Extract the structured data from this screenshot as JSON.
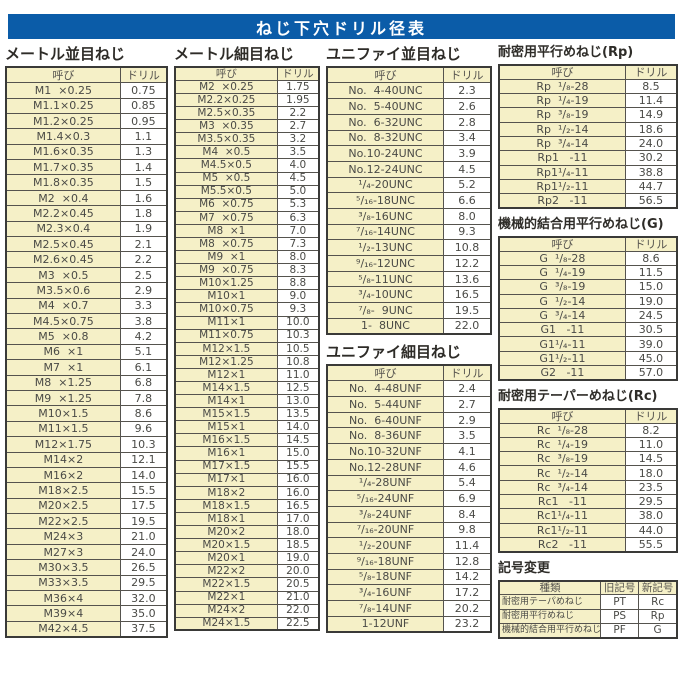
{
  "title": "ねじ下穴ドリル径表",
  "labels": {
    "name": "呼び",
    "drill": "ドリル"
  },
  "colors": {
    "accent_blue": "#0b5ca8",
    "cell_cream": "#f5f0c7",
    "border": "#3a3a38"
  },
  "tables": {
    "metric_coarse": {
      "title": "メートル並目ねじ",
      "rows": [
        [
          "M1  ×0.25",
          "0.75"
        ],
        [
          "M1.1×0.25",
          "0.85"
        ],
        [
          "M1.2×0.25",
          "0.95"
        ],
        [
          "M1.4×0.3",
          "1.1"
        ],
        [
          "M1.6×0.35",
          "1.3"
        ],
        [
          "M1.7×0.35",
          "1.4"
        ],
        [
          "M1.8×0.35",
          "1.5"
        ],
        [
          "M2  ×0.4",
          "1.6"
        ],
        [
          "M2.2×0.45",
          "1.8"
        ],
        [
          "M2.3×0.4",
          "1.9"
        ],
        [
          "M2.5×0.45",
          "2.1"
        ],
        [
          "M2.6×0.45",
          "2.2"
        ],
        [
          "M3  ×0.5",
          "2.5"
        ],
        [
          "M3.5×0.6",
          "2.9"
        ],
        [
          "M4  ×0.7",
          "3.3"
        ],
        [
          "M4.5×0.75",
          "3.8"
        ],
        [
          "M5  ×0.8",
          "4.2"
        ],
        [
          "M6  ×1",
          "5.1"
        ],
        [
          "M7  ×1",
          "6.1"
        ],
        [
          "M8  ×1.25",
          "6.8"
        ],
        [
          "M9  ×1.25",
          "7.8"
        ],
        [
          "M10×1.5",
          "8.6"
        ],
        [
          "M11×1.5",
          "9.6"
        ],
        [
          "M12×1.75",
          "10.3"
        ],
        [
          "M14×2",
          "12.1"
        ],
        [
          "M16×2",
          "14.0"
        ],
        [
          "M18×2.5",
          "15.5"
        ],
        [
          "M20×2.5",
          "17.5"
        ],
        [
          "M22×2.5",
          "19.5"
        ],
        [
          "M24×3",
          "21.0"
        ],
        [
          "M27×3",
          "24.0"
        ],
        [
          "M30×3.5",
          "26.5"
        ],
        [
          "M33×3.5",
          "29.5"
        ],
        [
          "M36×4",
          "32.0"
        ],
        [
          "M39×4",
          "35.0"
        ],
        [
          "M42×4.5",
          "37.5"
        ]
      ]
    },
    "metric_fine": {
      "title": "メートル細目ねじ",
      "rows": [
        [
          "M2  ×0.25",
          "1.75"
        ],
        [
          "M2.2×0.25",
          "1.95"
        ],
        [
          "M2.5×0.35",
          "2.2"
        ],
        [
          "M3  ×0.35",
          "2.7"
        ],
        [
          "M3.5×0.35",
          "3.2"
        ],
        [
          "M4  ×0.5",
          "3.5"
        ],
        [
          "M4.5×0.5",
          "4.0"
        ],
        [
          "M5  ×0.5",
          "4.5"
        ],
        [
          "M5.5×0.5",
          "5.0"
        ],
        [
          "M6  ×0.75",
          "5.3"
        ],
        [
          "M7  ×0.75",
          "6.3"
        ],
        [
          "M8  ×1",
          "7.0"
        ],
        [
          "M8  ×0.75",
          "7.3"
        ],
        [
          "M9  ×1",
          "8.0"
        ],
        [
          "M9  ×0.75",
          "8.3"
        ],
        [
          "M10×1.25",
          "8.8"
        ],
        [
          "M10×1",
          "9.0"
        ],
        [
          "M10×0.75",
          "9.3"
        ],
        [
          "M11×1",
          "10.0"
        ],
        [
          "M11×0.75",
          "10.3"
        ],
        [
          "M12×1.5",
          "10.5"
        ],
        [
          "M12×1.25",
          "10.8"
        ],
        [
          "M12×1",
          "11.0"
        ],
        [
          "M14×1.5",
          "12.5"
        ],
        [
          "M14×1",
          "13.0"
        ],
        [
          "M15×1.5",
          "13.5"
        ],
        [
          "M15×1",
          "14.0"
        ],
        [
          "M16×1.5",
          "14.5"
        ],
        [
          "M16×1",
          "15.0"
        ],
        [
          "M17×1.5",
          "15.5"
        ],
        [
          "M17×1",
          "16.0"
        ],
        [
          "M18×2",
          "16.0"
        ],
        [
          "M18×1.5",
          "16.5"
        ],
        [
          "M18×1",
          "17.0"
        ],
        [
          "M20×2",
          "18.0"
        ],
        [
          "M20×1.5",
          "18.5"
        ],
        [
          "M20×1",
          "19.0"
        ],
        [
          "M22×2",
          "20.0"
        ],
        [
          "M22×1.5",
          "20.5"
        ],
        [
          "M22×1",
          "21.0"
        ],
        [
          "M24×2",
          "22.0"
        ],
        [
          "M24×1.5",
          "22.5"
        ]
      ]
    },
    "unified_coarse": {
      "title": "ユニファイ並目ねじ",
      "rows": [
        [
          "No.  4-40UNC",
          "2.3"
        ],
        [
          "No.  5-40UNC",
          "2.6"
        ],
        [
          "No.  6-32UNC",
          "2.8"
        ],
        [
          "No.  8-32UNC",
          "3.4"
        ],
        [
          "No.10-24UNC",
          "3.9"
        ],
        [
          "No.12-24UNC",
          "4.5"
        ],
        [
          "¹/₄-20UNC",
          "5.2"
        ],
        [
          "⁵/₁₆-18UNC",
          "6.6"
        ],
        [
          "³/₈-16UNC",
          "8.0"
        ],
        [
          "⁷/₁₆-14UNC",
          "9.3"
        ],
        [
          "¹/₂-13UNC",
          "10.8"
        ],
        [
          "⁹/₁₆-12UNC",
          "12.2"
        ],
        [
          "⁵/₈-11UNC",
          "13.6"
        ],
        [
          "³/₄-10UNC",
          "16.5"
        ],
        [
          "⁷/₈-  9UNC",
          "19.5"
        ],
        [
          "1-  8UNC",
          "22.0"
        ]
      ]
    },
    "unified_fine": {
      "title": "ユニファイ細目ねじ",
      "rows": [
        [
          "No.  4-48UNF",
          "2.4"
        ],
        [
          "No.  5-44UNF",
          "2.7"
        ],
        [
          "No.  6-40UNF",
          "2.9"
        ],
        [
          "No.  8-36UNF",
          "3.5"
        ],
        [
          "No.10-32UNF",
          "4.1"
        ],
        [
          "No.12-28UNF",
          "4.6"
        ],
        [
          "¹/₄-28UNF",
          "5.4"
        ],
        [
          "⁵/₁₆-24UNF",
          "6.9"
        ],
        [
          "³/₈-24UNF",
          "8.4"
        ],
        [
          "⁷/₁₆-20UNF",
          "9.8"
        ],
        [
          "¹/₂-20UNF",
          "11.4"
        ],
        [
          "⁹/₁₆-18UNF",
          "12.8"
        ],
        [
          "⁵/₈-18UNF",
          "14.2"
        ],
        [
          "³/₄-16UNF",
          "17.2"
        ],
        [
          "⁷/₈-14UNF",
          "20.2"
        ],
        [
          "1-12UNF",
          "23.2"
        ]
      ]
    },
    "rp": {
      "title": "耐密用平行めねじ(Rp)",
      "rows": [
        [
          "Rp  ¹/₈-28",
          "8.5"
        ],
        [
          "Rp  ¹/₄-19",
          "11.4"
        ],
        [
          "Rp  ³/₈-19",
          "14.9"
        ],
        [
          "Rp  ¹/₂-14",
          "18.6"
        ],
        [
          "Rp  ³/₄-14",
          "24.0"
        ],
        [
          "Rp1   -11",
          "30.2"
        ],
        [
          "Rp1¹/₄-11",
          "38.8"
        ],
        [
          "Rp1¹/₂-11",
          "44.7"
        ],
        [
          "Rp2   -11",
          "56.5"
        ]
      ]
    },
    "g": {
      "title": "機械的結合用平行めねじ(G)",
      "rows": [
        [
          "G  ¹/₈-28",
          "8.6"
        ],
        [
          "G  ¹/₄-19",
          "11.5"
        ],
        [
          "G  ³/₈-19",
          "15.0"
        ],
        [
          "G  ¹/₂-14",
          "19.0"
        ],
        [
          "G  ³/₄-14",
          "24.5"
        ],
        [
          "G1   -11",
          "30.5"
        ],
        [
          "G1¹/₄-11",
          "39.0"
        ],
        [
          "G1¹/₂-11",
          "45.0"
        ],
        [
          "G2   -11",
          "57.0"
        ]
      ]
    },
    "rc": {
      "title": "耐密用テーパーめねじ(Rc)",
      "rows": [
        [
          "Rc  ¹/₈-28",
          "8.2"
        ],
        [
          "Rc  ¹/₄-19",
          "11.0"
        ],
        [
          "Rc  ³/₈-19",
          "14.5"
        ],
        [
          "Rc  ¹/₂-14",
          "18.0"
        ],
        [
          "Rc  ³/₄-14",
          "23.5"
        ],
        [
          "Rc1   -11",
          "29.5"
        ],
        [
          "Rc1¹/₄-11",
          "38.0"
        ],
        [
          "Rc1¹/₂-11",
          "44.0"
        ],
        [
          "Rc2   -11",
          "55.5"
        ]
      ]
    },
    "symbol_change": {
      "title": "記号変更",
      "headers": [
        "種類",
        "旧記号",
        "新記号"
      ],
      "rows": [
        [
          "耐密用テーパめねじ",
          "PT",
          "Rc"
        ],
        [
          "耐密用平行めねじ",
          "PS",
          "Rp"
        ],
        [
          "機械的結合用平行めねじ",
          "PF",
          "G"
        ]
      ]
    }
  }
}
